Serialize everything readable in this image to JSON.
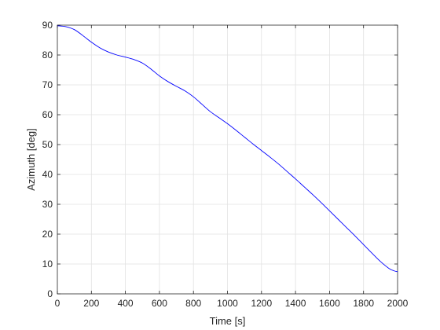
{
  "chart_data": {
    "type": "line",
    "title": "",
    "xlabel": "Time [s]",
    "ylabel": "Azimuth [deg]",
    "xlim": [
      0,
      2000
    ],
    "ylim": [
      0,
      90
    ],
    "xticks": [
      0,
      200,
      400,
      600,
      800,
      1000,
      1200,
      1400,
      1600,
      1800,
      2000
    ],
    "xtick_labels": [
      "0",
      "200",
      "400",
      "600",
      "800",
      "1000",
      "1200",
      "1400",
      "1600",
      "1800",
      "2000"
    ],
    "yticks": [
      0,
      10,
      20,
      30,
      40,
      50,
      60,
      70,
      80,
      90
    ],
    "ytick_labels": [
      "0",
      "10",
      "20",
      "30",
      "40",
      "50",
      "60",
      "70",
      "80",
      "90"
    ],
    "grid": true,
    "legend": false,
    "series": [
      {
        "color": "#0000ff",
        "x": [
          0,
          50,
          100,
          150,
          200,
          250,
          300,
          350,
          400,
          450,
          500,
          550,
          600,
          650,
          700,
          750,
          800,
          850,
          900,
          950,
          1000,
          1050,
          1100,
          1150,
          1200,
          1250,
          1300,
          1350,
          1400,
          1450,
          1500,
          1550,
          1600,
          1650,
          1700,
          1750,
          1800,
          1850,
          1900,
          1950,
          1980,
          2000
        ],
        "y": [
          89.8,
          89.5,
          88.5,
          86.5,
          84.3,
          82.4,
          81.0,
          80.0,
          79.3,
          78.5,
          77.3,
          75.3,
          73.0,
          71.1,
          69.5,
          68.0,
          66.0,
          63.5,
          61.0,
          59.0,
          57.0,
          54.8,
          52.5,
          50.2,
          48.0,
          45.8,
          43.5,
          41.0,
          38.5,
          35.9,
          33.3,
          30.6,
          27.8,
          25.0,
          22.2,
          19.4,
          16.5,
          13.6,
          10.8,
          8.5,
          7.7,
          7.4
        ]
      }
    ]
  }
}
